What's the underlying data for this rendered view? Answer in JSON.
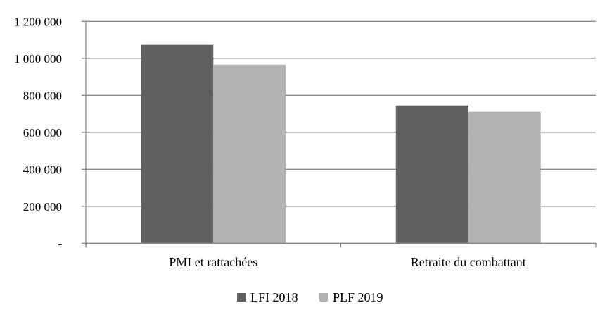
{
  "chart_data": {
    "type": "bar",
    "categories": [
      "PMI et rattachées",
      "Retraite du combattant"
    ],
    "series": [
      {
        "name": "LFI 2018",
        "values": [
          1073000,
          745000
        ],
        "color": "#606060"
      },
      {
        "name": "PLF 2019",
        "values": [
          966000,
          711000
        ],
        "color": "#b2b2b2"
      }
    ],
    "ylim": [
      0,
      1200000
    ],
    "yticks": [
      0,
      200000,
      400000,
      600000,
      800000,
      1000000,
      1200000
    ],
    "ytick_labels": [
      "-",
      "200 000",
      "400 000",
      "600 000",
      "800 000",
      "1 000 000",
      "1 200 000"
    ],
    "grid": true,
    "legend_position": "bottom",
    "title": "",
    "xlabel": "",
    "ylabel": ""
  }
}
